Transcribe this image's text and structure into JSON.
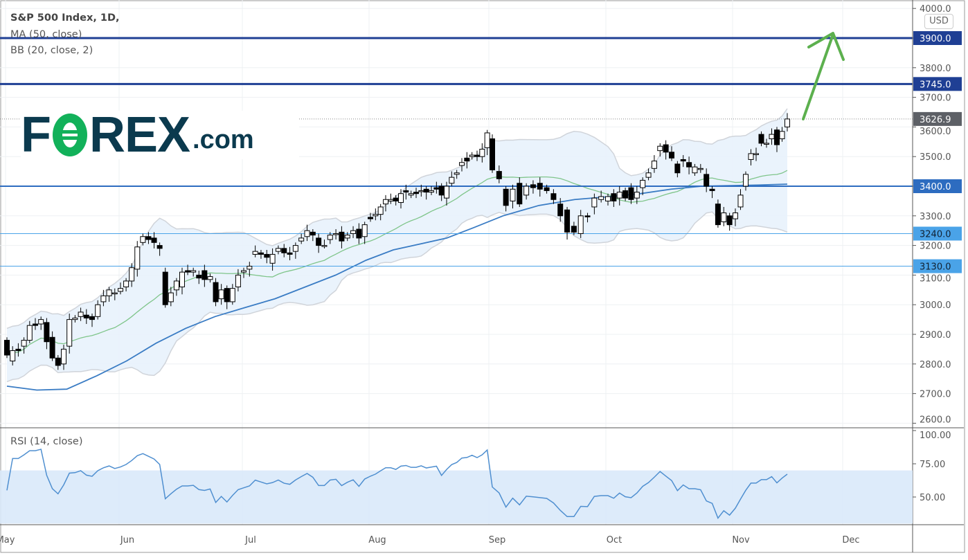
{
  "legend": {
    "title": "S&P 500 Index, 1D,",
    "ma": "MA (50, close)",
    "bb": "BB (20, close, 2)",
    "rsi": "RSI (14, close)"
  },
  "logo": {
    "text_left": "F",
    "text_right": "REX",
    "suffix": ".com"
  },
  "currency": "USD",
  "colors": {
    "candle_up": "#ffffff",
    "candle_down": "#000000",
    "ma50": "#3a7cc4",
    "bb_basis": "#7fc58a",
    "bb_fill": "#e8f2fc",
    "bb_band": "#d0d4da",
    "level_strong": "#1f3f94",
    "level_mid": "#2d6cc0",
    "level_light": "#4aa3e8",
    "current_price": "#5d6066",
    "rsi_line": "#4f8fd0",
    "rsi_band": "#d9e9f9",
    "arrow": "#5cb04e"
  },
  "chart_data": [
    {
      "type": "candlestick",
      "title": "S&P 500 Index, 1D,",
      "ylim": [
        2600,
        4000
      ],
      "grid": true,
      "y_ticks": [
        "4000.0",
        "3900.0",
        "3800.0",
        "3700.0",
        "3600.0",
        "3500.0",
        "3400.0",
        "3300.0",
        "3200.0",
        "3100.0",
        "3000.0",
        "2900.0",
        "2800.0",
        "2700.0",
        "2600.0"
      ],
      "x_ticks": [
        "May",
        "Jun",
        "Jul",
        "Aug",
        "Sep",
        "Oct",
        "Nov",
        "Dec"
      ],
      "current_price": 3626.9,
      "current_price_label": "3626.9",
      "levels": [
        {
          "value": 3900,
          "label": "3900.0",
          "style": "strong"
        },
        {
          "value": 3745,
          "label": "3745.0",
          "style": "strong"
        },
        {
          "value": 3400,
          "label": "3400.0",
          "style": "mid"
        },
        {
          "value": 3240,
          "label": "3240.0",
          "style": "light"
        },
        {
          "value": 3130,
          "label": "3130.0",
          "style": "light"
        }
      ],
      "ohlc_open_close": [
        [
          2880,
          2830
        ],
        [
          2810,
          2845
        ],
        [
          2850,
          2845
        ],
        [
          2860,
          2880
        ],
        [
          2880,
          2930
        ],
        [
          2935,
          2930
        ],
        [
          2935,
          2950
        ],
        [
          2940,
          2875
        ],
        [
          2890,
          2820
        ],
        [
          2820,
          2795
        ],
        [
          2800,
          2850
        ],
        [
          2860,
          2950
        ],
        [
          2950,
          2955
        ],
        [
          2960,
          2975
        ],
        [
          2965,
          2955
        ],
        [
          2960,
          2950
        ],
        [
          2960,
          3000
        ],
        [
          3010,
          3030
        ],
        [
          3030,
          3050
        ],
        [
          3040,
          3040
        ],
        [
          3045,
          3055
        ],
        [
          3060,
          3080
        ],
        [
          3080,
          3125
        ],
        [
          3120,
          3195
        ],
        [
          3210,
          3230
        ],
        [
          3230,
          3220
        ],
        [
          3225,
          3210
        ],
        [
          3200,
          3190
        ],
        [
          3110,
          3000
        ],
        [
          3010,
          3040
        ],
        [
          3050,
          3080
        ],
        [
          3060,
          3110
        ],
        [
          3115,
          3110
        ],
        [
          3110,
          3115
        ],
        [
          3100,
          3090
        ],
        [
          3115,
          3085
        ],
        [
          3085,
          3095
        ],
        [
          3075,
          3010
        ],
        [
          3020,
          3050
        ],
        [
          3055,
          3010
        ],
        [
          3010,
          3055
        ],
        [
          3060,
          3100
        ],
        [
          3110,
          3115
        ],
        [
          3120,
          3130
        ],
        [
          3170,
          3180
        ],
        [
          3175,
          3170
        ],
        [
          3170,
          3160
        ],
        [
          3140,
          3170
        ],
        [
          3180,
          3190
        ],
        [
          3190,
          3175
        ],
        [
          3175,
          3170
        ],
        [
          3180,
          3200
        ],
        [
          3215,
          3225
        ],
        [
          3230,
          3250
        ],
        [
          3245,
          3235
        ],
        [
          3225,
          3200
        ],
        [
          3200,
          3200
        ],
        [
          3220,
          3235
        ],
        [
          3240,
          3240
        ],
        [
          3245,
          3215
        ],
        [
          3225,
          3235
        ],
        [
          3240,
          3250
        ],
        [
          3255,
          3225
        ],
        [
          3230,
          3270
        ],
        [
          3295,
          3290
        ],
        [
          3300,
          3305
        ],
        [
          3305,
          3330
        ],
        [
          3340,
          3355
        ],
        [
          3350,
          3355
        ],
        [
          3360,
          3350
        ],
        [
          3345,
          3375
        ],
        [
          3385,
          3380
        ],
        [
          3370,
          3375
        ],
        [
          3380,
          3375
        ],
        [
          3385,
          3385
        ],
        [
          3390,
          3380
        ],
        [
          3380,
          3385
        ],
        [
          3395,
          3390
        ],
        [
          3400,
          3370
        ],
        [
          3360,
          3400
        ],
        [
          3410,
          3430
        ],
        [
          3440,
          3445
        ],
        [
          3470,
          3480
        ],
        [
          3495,
          3485
        ],
        [
          3500,
          3505
        ],
        [
          3505,
          3500
        ],
        [
          3500,
          3525
        ],
        [
          3530,
          3580
        ],
        [
          3560,
          3455
        ],
        [
          3450,
          3425
        ],
        [
          3390,
          3335
        ],
        [
          3350,
          3390
        ],
        [
          3410,
          3340
        ],
        [
          3370,
          3400
        ],
        [
          3405,
          3395
        ],
        [
          3410,
          3390
        ],
        [
          3395,
          3385
        ],
        [
          3375,
          3355
        ],
        [
          3340,
          3300
        ],
        [
          3320,
          3245
        ],
        [
          3265,
          3245
        ],
        [
          3240,
          3300
        ],
        [
          3300,
          3298
        ],
        [
          3330,
          3360
        ],
        [
          3355,
          3365
        ],
        [
          3350,
          3365
        ],
        [
          3375,
          3350
        ],
        [
          3360,
          3380
        ],
        [
          3385,
          3360
        ],
        [
          3395,
          3355
        ],
        [
          3360,
          3380
        ],
        [
          3395,
          3420
        ],
        [
          3430,
          3445
        ],
        [
          3460,
          3485
        ],
        [
          3520,
          3535
        ],
        [
          3540,
          3515
        ],
        [
          3515,
          3495
        ],
        [
          3475,
          3445
        ],
        [
          3490,
          3485
        ],
        [
          3480,
          3465
        ],
        [
          3445,
          3465
        ],
        [
          3460,
          3460
        ],
        [
          3440,
          3400
        ],
        [
          3390,
          3385
        ],
        [
          3340,
          3270
        ],
        [
          3280,
          3310
        ],
        [
          3300,
          3270
        ],
        [
          3290,
          3310
        ],
        [
          3330,
          3370
        ],
        [
          3400,
          3440
        ],
        [
          3490,
          3510
        ],
        [
          3510,
          3510
        ],
        [
          3575,
          3545
        ],
        [
          3545,
          3545
        ],
        [
          3560,
          3575
        ],
        [
          3590,
          3540
        ],
        [
          3560,
          3585
        ],
        [
          3600,
          3626.9
        ]
      ],
      "ma50_sampled": [
        2725,
        2712,
        2715,
        2760,
        2810,
        2870,
        2920,
        2960,
        2990,
        3020,
        3060,
        3100,
        3150,
        3185,
        3205,
        3225,
        3260,
        3300,
        3335,
        3355,
        3365,
        3375,
        3390,
        3400,
        3402,
        3404,
        3407
      ]
    },
    {
      "type": "line",
      "title": "RSI (14, close)",
      "ylim": [
        30,
        100
      ],
      "y_ticks": [
        "100.00",
        "75.00",
        "50.00"
      ],
      "band": [
        30,
        70
      ]
    }
  ]
}
